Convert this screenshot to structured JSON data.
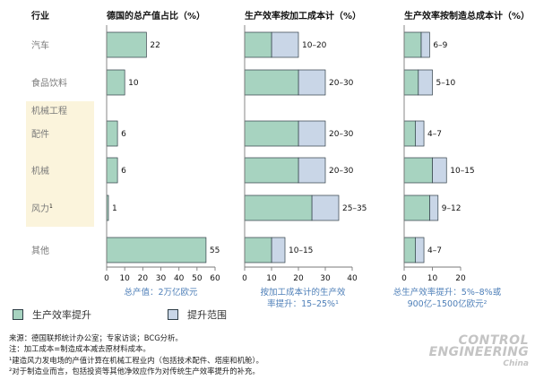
{
  "colors": {
    "productivity": "#a7d3c0",
    "improvement": "#c9d6e7",
    "edge": "#2f3e46",
    "axis": "#7a7a7a",
    "highlight": "#fbf4dc",
    "blue_text": "#4e7fb8",
    "title_text": "#111111",
    "label_text": "#7a7a7a"
  },
  "row_header": "行业",
  "categories": [
    "汽车",
    "食品饮料",
    "配件",
    "机械",
    "风力",
    "其他"
  ],
  "category_footnote": "1",
  "group_label": "机械工程",
  "legend": {
    "productivity": "生产效率提升",
    "range": "提升范围"
  },
  "chart_data": [
    {
      "type": "bar",
      "title": "德国的总产值占比（%）",
      "categories": [
        "汽车",
        "食品饮料",
        "配件",
        "机械",
        "风力",
        "其他"
      ],
      "values": [
        22,
        10,
        6,
        6,
        1,
        55
      ],
      "value_labels": [
        "22",
        "10",
        "6",
        "6",
        "1",
        "55"
      ],
      "xlim": [
        0,
        60
      ],
      "xticks": [
        0,
        10,
        20,
        30,
        40,
        50,
        60
      ],
      "caption": "总产值：2万亿欧元"
    },
    {
      "type": "bar",
      "title": "生产效率按加工成本计（%）",
      "categories": [
        "汽车",
        "食品饮料",
        "配件",
        "机械",
        "风力",
        "其他"
      ],
      "series": [
        {
          "name": "生产效率提升",
          "values": [
            10,
            20,
            20,
            20,
            25,
            10
          ]
        },
        {
          "name": "提升范围",
          "values": [
            20,
            30,
            30,
            30,
            35,
            15
          ]
        }
      ],
      "value_labels": [
        "10–20",
        "20–30",
        "20–30",
        "20–30",
        "25–35",
        "10–15"
      ],
      "xlim": [
        0,
        40
      ],
      "xticks": [
        0,
        10,
        20,
        30,
        40
      ],
      "caption_lines": [
        "按加工成本计的生产效",
        "率提升：15–25%¹"
      ]
    },
    {
      "type": "bar",
      "title": "生产效率按制造总成本计（%）",
      "categories": [
        "汽车",
        "食品饮料",
        "配件",
        "机械",
        "风力",
        "其他"
      ],
      "series": [
        {
          "name": "生产效率提升",
          "values": [
            6,
            5,
            4,
            10,
            9,
            4
          ]
        },
        {
          "name": "提升范围",
          "values": [
            9,
            10,
            7,
            15,
            12,
            7
          ]
        }
      ],
      "value_labels": [
        "6–9",
        "5–10",
        "4–7",
        "10–15",
        "9–12",
        "4–7"
      ],
      "xlim": [
        0,
        20
      ],
      "xticks": [
        0,
        10,
        20
      ],
      "caption_lines": [
        "总生产效率提升：5%–8%或",
        "900亿–1500亿欧元²"
      ]
    }
  ],
  "notes": {
    "source": "来源：德国联邦统计办公室；专家访谈；BCG分析。",
    "note": "注：加工成本=制造成本减去原材料成本。",
    "fn1": "¹建造风力发电场的产值计算在机械工程业内（包括技术配件、塔座和机舱）。",
    "fn2": "²对于制造业而言，包括投资等其他净效应作为对传统生产效率提升的补充。"
  },
  "watermark": {
    "line1": "CONTROL",
    "line2": "ENGINEERING",
    "line3": "China"
  }
}
